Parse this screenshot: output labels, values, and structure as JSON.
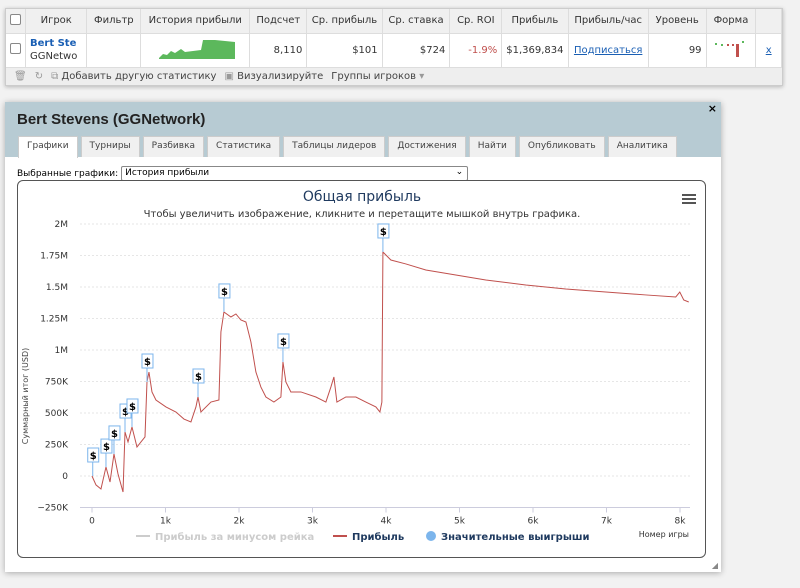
{
  "table": {
    "headers": [
      "Игрок",
      "Фильтр",
      "История прибыли",
      "Подсчет",
      "Ср. прибыль",
      "Ср. ставка",
      "Ср. ROI",
      "Прибыль",
      "Прибыль/час",
      "Уровень",
      "Форма"
    ],
    "row": {
      "player": "Bert Ste",
      "network": "GGNetwo",
      "count": "8,110",
      "avg_profit": "$101",
      "avg_stake": "$724",
      "avg_roi": "-1.9%",
      "profit": "$1,369,834",
      "per_hour": "Подписаться",
      "level": "99",
      "remove": "x"
    }
  },
  "toolbar": {
    "add_stat": "Добавить другую статистику",
    "visualize": "Визуализируйте",
    "groups": "Группы игроков"
  },
  "modal": {
    "title": "Bert Stevens (GGNetwork)",
    "close": "×",
    "tabs": [
      "Графики",
      "Турниры",
      "Разбивка",
      "Статистика",
      "Таблицы лидеров",
      "Достижения",
      "Найти",
      "Опубликовать",
      "Аналитика"
    ],
    "selected_label": "Выбранные графики:",
    "selected_value": "История прибыли"
  },
  "colors": {
    "profit": "#c0504d",
    "rake": "#cccccc",
    "wins": "#7cb5ec",
    "roi_negative": "#c0504d"
  },
  "chart_data": {
    "type": "line",
    "title": "Общая прибыль",
    "subtitle": "Чтобы увеличить изображение, кликните и перетащите мышкой внутрь графика.",
    "xlabel": "Номер игры",
    "ylabel": "Суммарный итог (USD)",
    "xlim": [
      0,
      8200
    ],
    "ylim": [
      -250000,
      2000000
    ],
    "xticks": [
      "0",
      "1k",
      "2k",
      "3k",
      "4k",
      "5k",
      "6k",
      "7k",
      "8k"
    ],
    "yticks": [
      "−250K",
      "0",
      "250K",
      "500K",
      "750K",
      "1M",
      "1.25M",
      "1.5M",
      "1.75M",
      "2M"
    ],
    "legend": [
      "Прибыль за минусом рейка",
      "Прибыль",
      "Значительные выигрыши"
    ],
    "legend_position": "bottom",
    "series": [
      {
        "name": "Прибыль",
        "points": [
          [
            0,
            0
          ],
          [
            54,
            -71000
          ],
          [
            122,
            -103000
          ],
          [
            190,
            71000
          ],
          [
            245,
            -48000
          ],
          [
            299,
            175000
          ],
          [
            354,
            16000
          ],
          [
            422,
            -127000
          ],
          [
            449,
            349000
          ],
          [
            490,
            270000
          ],
          [
            544,
            389000
          ],
          [
            612,
            230000
          ],
          [
            666,
            270000
          ],
          [
            721,
            310000
          ],
          [
            748,
            746000
          ],
          [
            775,
            825000
          ],
          [
            816,
            667000
          ],
          [
            870,
            603000
          ],
          [
            1006,
            548000
          ],
          [
            1142,
            508000
          ],
          [
            1251,
            452000
          ],
          [
            1346,
            429000
          ],
          [
            1414,
            548000
          ],
          [
            1442,
            627000
          ],
          [
            1482,
            508000
          ],
          [
            1618,
            587000
          ],
          [
            1727,
            603000
          ],
          [
            1754,
            1143000
          ],
          [
            1795,
            1302000
          ],
          [
            1890,
            1262000
          ],
          [
            1958,
            1286000
          ],
          [
            2026,
            1238000
          ],
          [
            2094,
            1222000
          ],
          [
            2162,
            1064000
          ],
          [
            2230,
            825000
          ],
          [
            2298,
            706000
          ],
          [
            2366,
            627000
          ],
          [
            2475,
            587000
          ],
          [
            2570,
            627000
          ],
          [
            2598,
            905000
          ],
          [
            2638,
            746000
          ],
          [
            2706,
            667000
          ],
          [
            2842,
            667000
          ],
          [
            3046,
            627000
          ],
          [
            3182,
            587000
          ],
          [
            3250,
            706000
          ],
          [
            3291,
            786000
          ],
          [
            3332,
            587000
          ],
          [
            3454,
            627000
          ],
          [
            3590,
            627000
          ],
          [
            3726,
            587000
          ],
          [
            3862,
            548000
          ],
          [
            3917,
            508000
          ],
          [
            3944,
            587000
          ],
          [
            3958,
            1778000
          ],
          [
            4066,
            1714000
          ],
          [
            4270,
            1683000
          ],
          [
            4542,
            1635000
          ],
          [
            4950,
            1595000
          ],
          [
            5358,
            1556000
          ],
          [
            5902,
            1516000
          ],
          [
            6446,
            1484000
          ],
          [
            6990,
            1460000
          ],
          [
            7534,
            1437000
          ],
          [
            7942,
            1421000
          ],
          [
            7997,
            1460000
          ],
          [
            8051,
            1397000
          ],
          [
            8119,
            1381000
          ]
        ]
      }
    ],
    "big_wins": [
      [
        10,
        0
      ],
      [
        190,
        71000
      ],
      [
        299,
        175000
      ],
      [
        449,
        349000
      ],
      [
        544,
        389000
      ],
      [
        748,
        746000
      ],
      [
        1442,
        627000
      ],
      [
        1795,
        1302000
      ],
      [
        2598,
        905000
      ],
      [
        3958,
        1778000
      ]
    ],
    "big_win_label": "$"
  }
}
